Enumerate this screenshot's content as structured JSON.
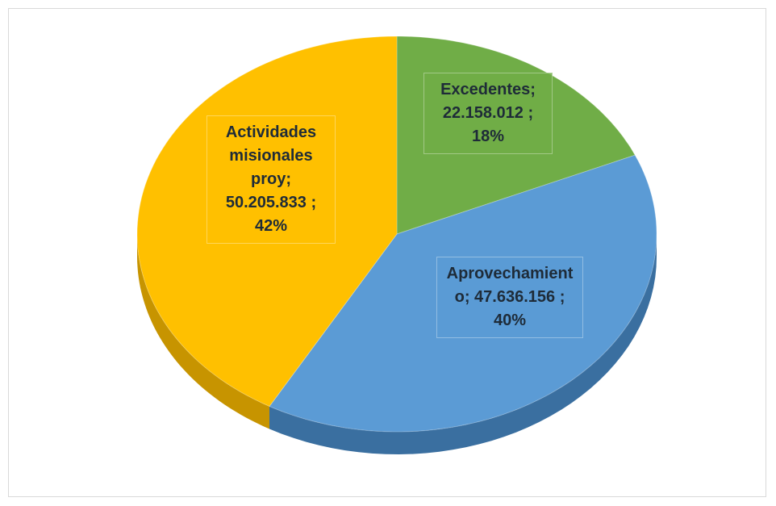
{
  "chart_data": {
    "type": "pie3d",
    "categories": [
      "Excedentes",
      "Aprovechamiento",
      "Actividades misionales proy"
    ],
    "values": [
      22158012,
      47636156,
      50205833
    ],
    "value_labels": [
      "22.158.012",
      "47.636.156",
      "50.205.833"
    ],
    "percents": [
      18,
      40,
      42
    ],
    "data_labels": [
      "Excedentes; 22.158.012 ; 18%",
      "Aprovechamiento; 47.636.156 ; 40%",
      "Actividades misionales proy; 50.205.833 ; 42%"
    ],
    "colors": [
      "#70ad47",
      "#5b9bd5",
      "#ffc000"
    ],
    "side_colors": [
      "#4e7d31",
      "#3a6fa0",
      "#c79400"
    ]
  }
}
